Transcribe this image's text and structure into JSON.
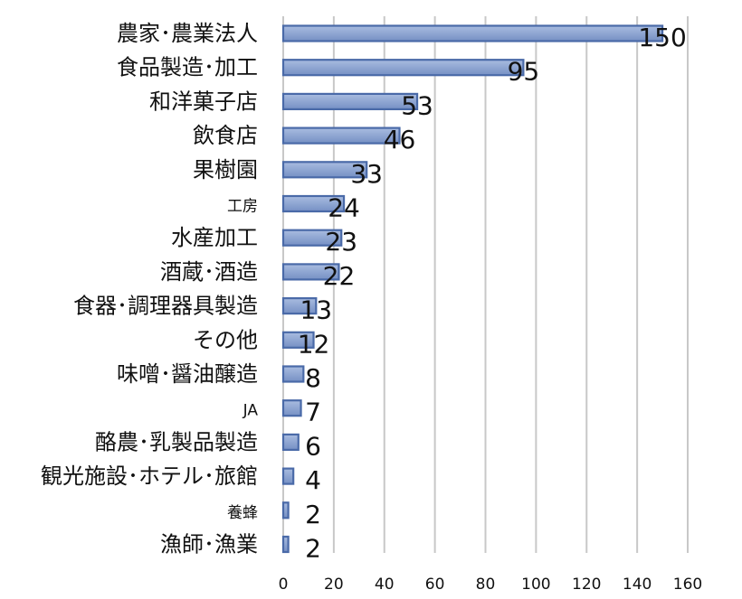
{
  "chart_data": {
    "type": "bar",
    "orientation": "horizontal",
    "title": "",
    "xlabel": "",
    "ylabel": "",
    "categories": [
      "農家･農業法人",
      "食品製造･加工",
      "和洋菓子店",
      "飲食店",
      "果樹園",
      "工房",
      "水産加工",
      "酒蔵･酒造",
      "食器･調理器具製造",
      "その他",
      "味噌･醤油醸造",
      "JA",
      "酪農･乳製品製造",
      "観光施設･ホテル･旅館",
      "養蜂",
      "漁師･漁業"
    ],
    "values": [
      150,
      95,
      53,
      46,
      33,
      24,
      23,
      22,
      13,
      12,
      8,
      7,
      6,
      4,
      2,
      2
    ],
    "xlim": [
      0,
      160
    ],
    "x_ticks": [
      0,
      20,
      40,
      60,
      80,
      100,
      120,
      140,
      160
    ],
    "grid": "vertical",
    "legend": "none",
    "colors": {
      "bar_fill": "#8fa6d2",
      "bar_stroke": "#4a6aa8",
      "grid": "#c8c8c8"
    }
  }
}
